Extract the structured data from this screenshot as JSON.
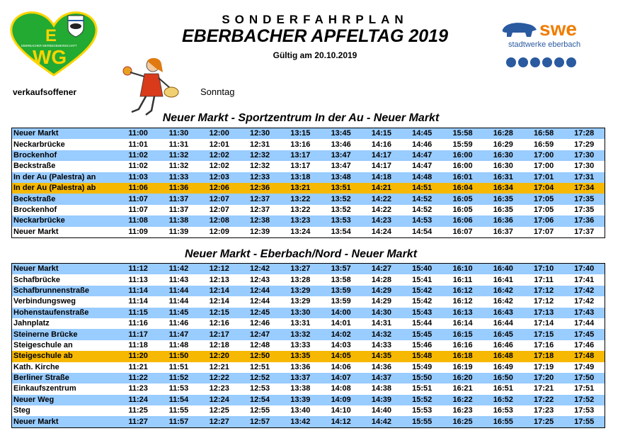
{
  "header": {
    "title_small": "SONDERFAHRPLAN",
    "title_main": "EBERBACHER APFELTAG 2019",
    "validity": "Gültig am 20.10.2019",
    "left_label": "verkaufsoffener",
    "right_label": "Sonntag"
  },
  "logos": {
    "ewg_letters": "EWG",
    "ewg_small": "EBERBACHER WERBEGEMEINSCHAFT",
    "swe_brand": "swe",
    "swe_sub": "stadtwerke eberbach"
  },
  "colors": {
    "row_blue": "#99ccff",
    "row_highlight": "#f6b800",
    "ewg_green": "#22aa33",
    "swe_orange": "#f07d00",
    "swe_blue": "#2a5aa0"
  },
  "route1": {
    "title": "Neuer Markt  -  Sportzentrum In der Au  -  Neuer Markt",
    "rows": [
      {
        "stop": "Neuer Markt",
        "style": "blue",
        "times": [
          "11:00",
          "11:30",
          "12:00",
          "12:30",
          "13:15",
          "13:45",
          "14:15",
          "14:45",
          "15:58",
          "16:28",
          "16:58",
          "17:28"
        ]
      },
      {
        "stop": "Neckarbrücke",
        "style": "white",
        "times": [
          "11:01",
          "11:31",
          "12:01",
          "12:31",
          "13:16",
          "13:46",
          "14:16",
          "14:46",
          "15:59",
          "16:29",
          "16:59",
          "17:29"
        ]
      },
      {
        "stop": "Brockenhof",
        "style": "blue",
        "times": [
          "11:02",
          "11:32",
          "12:02",
          "12:32",
          "13:17",
          "13:47",
          "14:17",
          "14:47",
          "16:00",
          "16:30",
          "17:00",
          "17:30"
        ]
      },
      {
        "stop": "Beckstraße",
        "style": "white",
        "times": [
          "11:02",
          "11:32",
          "12:02",
          "12:32",
          "13:17",
          "13:47",
          "14:17",
          "14:47",
          "16:00",
          "16:30",
          "17:00",
          "17:30"
        ]
      },
      {
        "stop": "In der Au (Palestra) an",
        "style": "blue",
        "times": [
          "11:03",
          "11:33",
          "12:03",
          "12:33",
          "13:18",
          "13:48",
          "14:18",
          "14:48",
          "16:01",
          "16:31",
          "17:01",
          "17:31"
        ]
      },
      {
        "stop": "In der Au (Palestra) ab",
        "style": "yellow",
        "times": [
          "11:06",
          "11:36",
          "12:06",
          "12:36",
          "13:21",
          "13:51",
          "14:21",
          "14:51",
          "16:04",
          "16:34",
          "17:04",
          "17:34"
        ]
      },
      {
        "stop": "Beckstraße",
        "style": "blue",
        "times": [
          "11:07",
          "11:37",
          "12:07",
          "12:37",
          "13:22",
          "13:52",
          "14:22",
          "14:52",
          "16:05",
          "16:35",
          "17:05",
          "17:35"
        ]
      },
      {
        "stop": "Brockenhof",
        "style": "white",
        "times": [
          "11:07",
          "11:37",
          "12:07",
          "12:37",
          "13:22",
          "13:52",
          "14:22",
          "14:52",
          "16:05",
          "16:35",
          "17:05",
          "17:35"
        ]
      },
      {
        "stop": "Neckarbrücke",
        "style": "blue",
        "times": [
          "11:08",
          "11:38",
          "12:08",
          "12:38",
          "13:23",
          "13:53",
          "14:23",
          "14:53",
          "16:06",
          "16:36",
          "17:06",
          "17:36"
        ]
      },
      {
        "stop": "Neuer Markt",
        "style": "white",
        "times": [
          "11:09",
          "11:39",
          "12:09",
          "12:39",
          "13:24",
          "13:54",
          "14:24",
          "14:54",
          "16:07",
          "16:37",
          "17:07",
          "17:37"
        ]
      }
    ]
  },
  "route2": {
    "title": "Neuer Markt  -  Eberbach/Nord  -  Neuer Markt",
    "rows": [
      {
        "stop": "Neuer Markt",
        "style": "blue",
        "times": [
          "11:12",
          "11:42",
          "12:12",
          "12:42",
          "13:27",
          "13:57",
          "14:27",
          "15:40",
          "16:10",
          "16:40",
          "17:10",
          "17:40"
        ]
      },
      {
        "stop": "Schafbrücke",
        "style": "white",
        "times": [
          "11:13",
          "11:43",
          "12:13",
          "12:43",
          "13:28",
          "13:58",
          "14:28",
          "15:41",
          "16:11",
          "16:41",
          "17:11",
          "17:41"
        ]
      },
      {
        "stop": "Schafbrunnenstraße",
        "style": "blue",
        "times": [
          "11:14",
          "11:44",
          "12:14",
          "12:44",
          "13:29",
          "13:59",
          "14:29",
          "15:42",
          "16:12",
          "16:42",
          "17:12",
          "17:42"
        ]
      },
      {
        "stop": "Verbindungsweg",
        "style": "white",
        "times": [
          "11:14",
          "11:44",
          "12:14",
          "12:44",
          "13:29",
          "13:59",
          "14:29",
          "15:42",
          "16:12",
          "16:42",
          "17:12",
          "17:42"
        ]
      },
      {
        "stop": "Hohenstaufenstraße",
        "style": "blue",
        "times": [
          "11:15",
          "11:45",
          "12:15",
          "12:45",
          "13:30",
          "14:00",
          "14:30",
          "15:43",
          "16:13",
          "16:43",
          "17:13",
          "17:43"
        ]
      },
      {
        "stop": "Jahnplatz",
        "style": "white",
        "times": [
          "11:16",
          "11:46",
          "12:16",
          "12:46",
          "13:31",
          "14:01",
          "14:31",
          "15:44",
          "16:14",
          "16:44",
          "17:14",
          "17:44"
        ]
      },
      {
        "stop": "Steinerne Brücke",
        "style": "blue",
        "times": [
          "11:17",
          "11:47",
          "12:17",
          "12:47",
          "13:32",
          "14:02",
          "14:32",
          "15:45",
          "16:15",
          "16:45",
          "17:15",
          "17:45"
        ]
      },
      {
        "stop": "Steigeschule an",
        "style": "white",
        "times": [
          "11:18",
          "11:48",
          "12:18",
          "12:48",
          "13:33",
          "14:03",
          "14:33",
          "15:46",
          "16:16",
          "16:46",
          "17:16",
          "17:46"
        ]
      },
      {
        "stop": "Steigeschule ab",
        "style": "yellow",
        "times": [
          "11:20",
          "11:50",
          "12:20",
          "12:50",
          "13:35",
          "14:05",
          "14:35",
          "15:48",
          "16:18",
          "16:48",
          "17:18",
          "17:48"
        ]
      },
      {
        "stop": "Kath. Kirche",
        "style": "white",
        "times": [
          "11:21",
          "11:51",
          "12:21",
          "12:51",
          "13:36",
          "14:06",
          "14:36",
          "15:49",
          "16:19",
          "16:49",
          "17:19",
          "17:49"
        ]
      },
      {
        "stop": "Berliner Straße",
        "style": "blue",
        "times": [
          "11:22",
          "11:52",
          "12:22",
          "12:52",
          "13:37",
          "14:07",
          "14:37",
          "15:50",
          "16:20",
          "16:50",
          "17:20",
          "17:50"
        ]
      },
      {
        "stop": "Einkaufszentrum",
        "style": "white",
        "times": [
          "11:23",
          "11:53",
          "12:23",
          "12:53",
          "13:38",
          "14:08",
          "14:38",
          "15:51",
          "16:21",
          "16:51",
          "17:21",
          "17:51"
        ]
      },
      {
        "stop": "Neuer Weg",
        "style": "blue",
        "times": [
          "11:24",
          "11:54",
          "12:24",
          "12:54",
          "13:39",
          "14:09",
          "14:39",
          "15:52",
          "16:22",
          "16:52",
          "17:22",
          "17:52"
        ]
      },
      {
        "stop": "Steg",
        "style": "white",
        "times": [
          "11:25",
          "11:55",
          "12:25",
          "12:55",
          "13:40",
          "14:10",
          "14:40",
          "15:53",
          "16:23",
          "16:53",
          "17:23",
          "17:53"
        ]
      },
      {
        "stop": "Neuer Markt",
        "style": "blue",
        "times": [
          "11:27",
          "11:57",
          "12:27",
          "12:57",
          "13:42",
          "14:12",
          "14:42",
          "15:55",
          "16:25",
          "16:55",
          "17:25",
          "17:55"
        ]
      }
    ]
  }
}
